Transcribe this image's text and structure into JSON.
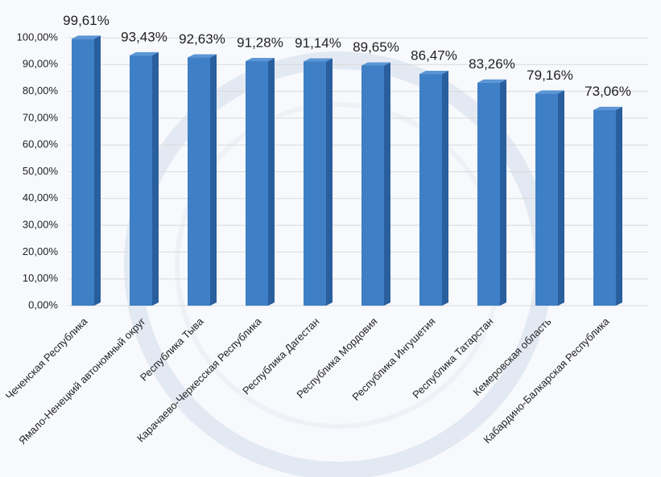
{
  "chart_data": {
    "type": "bar",
    "categories": [
      "Чеченская Республика",
      "Ямало-Ненецкий автономный округ",
      "Республика Тыва",
      "Карачаево-Черкесская Республика",
      "Республика Дагестан",
      "Республика Мордовия",
      "Республика Ингушетия",
      "Республика Татарстан",
      "Кемеровская область",
      "Кабардино-Балкарская Республика"
    ],
    "values": [
      99.61,
      93.43,
      92.63,
      91.28,
      91.14,
      89.65,
      86.47,
      83.26,
      79.16,
      73.06
    ],
    "value_labels": [
      "99,61%",
      "93,43%",
      "92,63%",
      "91,28%",
      "91,14%",
      "89,65%",
      "86,47%",
      "83,26%",
      "79,16%",
      "73,06%"
    ],
    "color": "#3f7fc6",
    "ylim": [
      0,
      100
    ],
    "yticks": [
      {
        "value": 0,
        "label": "0,00%"
      },
      {
        "value": 10,
        "label": "10,00%"
      },
      {
        "value": 20,
        "label": "20,00%"
      },
      {
        "value": 30,
        "label": "30,00%"
      },
      {
        "value": 40,
        "label": "40,00%"
      },
      {
        "value": 50,
        "label": "50,00%"
      },
      {
        "value": 60,
        "label": "60,00%"
      },
      {
        "value": 70,
        "label": "70,00%"
      },
      {
        "value": 80,
        "label": "80,00%"
      },
      {
        "value": 90,
        "label": "90,00%"
      },
      {
        "value": 100,
        "label": "100,00%"
      }
    ],
    "grid": true
  }
}
